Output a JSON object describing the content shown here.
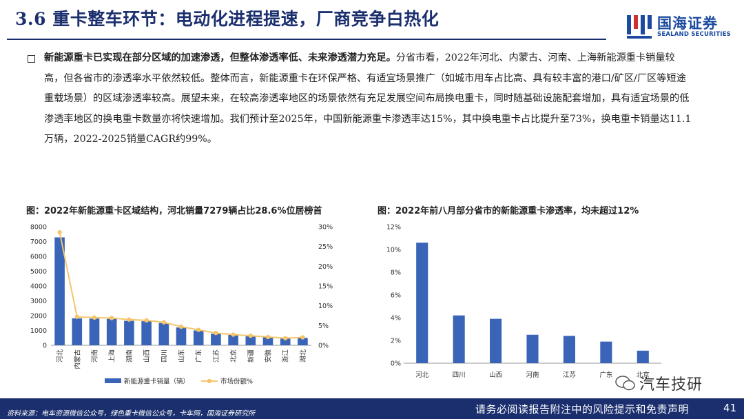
{
  "header": {
    "title": "3.6 重卡整车环节：电动化进程提速，厂商竞争白热化"
  },
  "logo": {
    "cn": "国海证券",
    "en": "SEALAND SECURITIES"
  },
  "body": {
    "lead": "新能源重卡已实现在部分区域的加速渗透，但整体渗透率低、未来渗透潜力充足。",
    "text": "分省市看，2022年河北、内蒙古、河南、上海新能源重卡销量较高，但各省市的渗透率水平依然较低。整体而言，新能源重卡在环保严格、有适宜场景推广（如城市用车占比高、具有较丰富的港口/矿区/厂区等短途重载场景）的区域渗透率较高。展望未来，在较高渗透率地区的场景依然有充足发展空间布局换电重卡，同时随基础设施配套增加，具有适宜场景的低渗透率地区的换电重卡数量亦将快速增加。我们预计至2025年，中国新能源重卡渗透率达15%，其中换电重卡占比提升至73%，换电重卡销量达11.1万辆，2022-2025销量CAGR约99%。"
  },
  "colors": {
    "navy": "#1b2f6e",
    "bar": "#3a64b8",
    "line": "#f5c56b"
  },
  "chart_data": [
    {
      "type": "bar",
      "title": "图：2022年新能源重卡区域结构，河北销量7279辆占比28.6%位居榜首",
      "categories": [
        "河北",
        "内蒙古",
        "河南",
        "上海",
        "湖南",
        "山西",
        "四川",
        "山东",
        "广东",
        "江苏",
        "北京",
        "新疆",
        "安徽",
        "浙江",
        "湖北"
      ],
      "series": [
        {
          "name": "新能源重卡销量（辆）",
          "type": "bar",
          "axis": "left",
          "values": [
            7279,
            1820,
            1800,
            1780,
            1650,
            1620,
            1500,
            1200,
            1000,
            780,
            700,
            600,
            550,
            450,
            500
          ]
        },
        {
          "name": "市场份额%",
          "type": "line",
          "axis": "right",
          "values": [
            28.6,
            7.2,
            7.0,
            6.9,
            6.5,
            6.3,
            5.8,
            4.7,
            3.9,
            3.1,
            2.7,
            2.4,
            2.1,
            1.8,
            2.0
          ]
        }
      ],
      "ylim_left": [
        0,
        8000
      ],
      "yticks_left": [
        "0",
        "1000",
        "2000",
        "3000",
        "4000",
        "5000",
        "6000",
        "7000",
        "8000"
      ],
      "ylim_right": [
        0,
        30
      ],
      "yticks_right": [
        "0%",
        "5%",
        "10%",
        "15%",
        "20%",
        "25%",
        "30%"
      ],
      "legend": [
        "新能源重卡销量（辆）",
        "市场份额%"
      ],
      "legend_position": "bottom"
    },
    {
      "type": "bar",
      "title": "图：2022年前八月部分省市的新能源重卡渗透率，均未超过12%",
      "categories": [
        "河北",
        "四川",
        "山西",
        "河南",
        "江苏",
        "广东",
        "北京"
      ],
      "values": [
        10.6,
        4.2,
        3.9,
        2.5,
        2.4,
        1.9,
        1.1
      ],
      "ylim": [
        0,
        12
      ],
      "yticks": [
        "0%",
        "2%",
        "4%",
        "6%",
        "8%",
        "10%",
        "12%"
      ]
    }
  ],
  "footer": {
    "source": "资料来源：电车资源微信公众号，绿色重卡微信公众号，卡车网，国海证券研究所",
    "disclaimer": "请务必阅读报告附注中的风险提示和免责声明",
    "page": "41"
  },
  "watermark": {
    "text": "汽车技研"
  }
}
